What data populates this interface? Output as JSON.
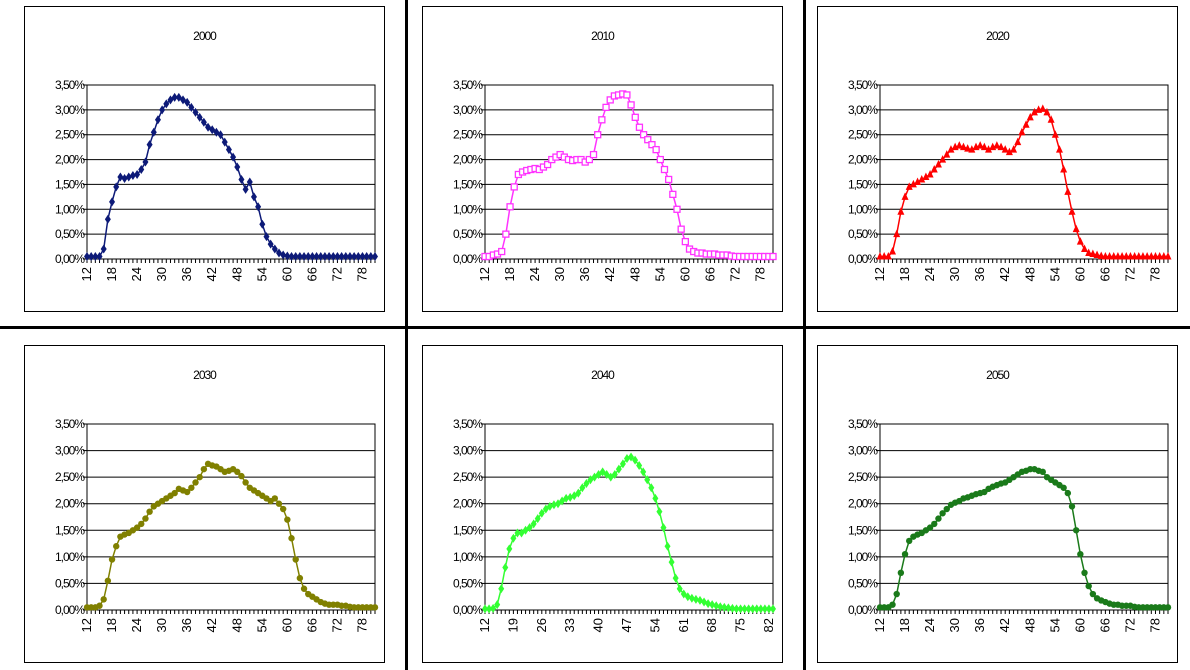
{
  "chart_data": [
    {
      "type": "line",
      "title": "2000",
      "color": "#0d1a78",
      "marker": "diamond",
      "x_ticks": [
        12,
        18,
        24,
        30,
        36,
        42,
        48,
        54,
        60,
        66,
        72,
        78
      ],
      "y_ticks": [
        "0,00%",
        "0,50%",
        "1,00%",
        "1,50%",
        "2,00%",
        "2,50%",
        "3,00%",
        "3,50%"
      ],
      "xlim": [
        12,
        81
      ],
      "ylim": [
        0,
        3.5
      ],
      "grid": true,
      "series": [
        {
          "x": [
            12,
            13,
            14,
            15,
            16,
            17,
            18,
            19,
            20,
            21,
            22,
            23,
            24,
            25,
            26,
            27,
            28,
            29,
            30,
            31,
            32,
            33,
            34,
            35,
            36,
            37,
            38,
            39,
            40,
            41,
            42,
            43,
            44,
            45,
            46,
            47,
            48,
            49,
            50,
            51,
            52,
            53,
            54,
            55,
            56,
            57,
            58,
            59,
            60,
            61,
            62,
            63,
            64,
            65,
            66,
            67,
            68,
            69,
            70,
            71,
            72,
            73,
            74,
            75,
            76,
            77,
            78,
            79,
            80,
            81
          ],
          "values": [
            0.05,
            0.05,
            0.05,
            0.05,
            0.2,
            0.8,
            1.15,
            1.45,
            1.65,
            1.62,
            1.65,
            1.68,
            1.7,
            1.8,
            1.95,
            2.3,
            2.55,
            2.8,
            3.0,
            3.12,
            3.2,
            3.25,
            3.25,
            3.2,
            3.15,
            3.05,
            2.95,
            2.85,
            2.75,
            2.65,
            2.6,
            2.55,
            2.5,
            2.35,
            2.2,
            2.05,
            1.85,
            1.6,
            1.4,
            1.55,
            1.25,
            1.05,
            0.7,
            0.45,
            0.3,
            0.2,
            0.12,
            0.08,
            0.06,
            0.05,
            0.05,
            0.05,
            0.05,
            0.05,
            0.05,
            0.05,
            0.05,
            0.05,
            0.05,
            0.05,
            0.05,
            0.05,
            0.05,
            0.05,
            0.05,
            0.05,
            0.05,
            0.05,
            0.05,
            0.05
          ]
        }
      ]
    },
    {
      "type": "line",
      "title": "2010",
      "color": "#ff33ff",
      "marker": "square",
      "x_ticks": [
        12,
        18,
        24,
        30,
        36,
        42,
        48,
        54,
        60,
        66,
        72,
        78
      ],
      "y_ticks": [
        "0,00%",
        "0,50%",
        "1,00%",
        "1,50%",
        "2,00%",
        "2,50%",
        "3,00%",
        "3,50%"
      ],
      "xlim": [
        12,
        81
      ],
      "ylim": [
        0,
        3.5
      ],
      "grid": true,
      "series": [
        {
          "x": [
            12,
            13,
            14,
            15,
            16,
            17,
            18,
            19,
            20,
            21,
            22,
            23,
            24,
            25,
            26,
            27,
            28,
            29,
            30,
            31,
            32,
            33,
            34,
            35,
            36,
            37,
            38,
            39,
            40,
            41,
            42,
            43,
            44,
            45,
            46,
            47,
            48,
            49,
            50,
            51,
            52,
            53,
            54,
            55,
            56,
            57,
            58,
            59,
            60,
            61,
            62,
            63,
            64,
            65,
            66,
            67,
            68,
            69,
            70,
            71,
            72,
            73,
            74,
            75,
            76,
            77,
            78,
            79,
            80,
            81
          ],
          "values": [
            0.05,
            0.05,
            0.08,
            0.1,
            0.15,
            0.5,
            1.05,
            1.45,
            1.7,
            1.75,
            1.78,
            1.8,
            1.82,
            1.8,
            1.85,
            1.9,
            2.0,
            2.05,
            2.1,
            2.05,
            2.0,
            1.98,
            2.0,
            2.0,
            1.95,
            2.0,
            2.1,
            2.5,
            2.8,
            3.05,
            3.2,
            3.28,
            3.3,
            3.32,
            3.3,
            3.1,
            2.85,
            2.65,
            2.5,
            2.4,
            2.3,
            2.2,
            2.0,
            1.8,
            1.6,
            1.3,
            1.0,
            0.6,
            0.35,
            0.2,
            0.15,
            0.12,
            0.12,
            0.1,
            0.1,
            0.1,
            0.08,
            0.08,
            0.08,
            0.06,
            0.05,
            0.05,
            0.05,
            0.05,
            0.05,
            0.05,
            0.05,
            0.05,
            0.05,
            0.05
          ]
        }
      ]
    },
    {
      "type": "line",
      "title": "2020",
      "color": "#ff0000",
      "marker": "triangle",
      "x_ticks": [
        12,
        18,
        24,
        30,
        36,
        42,
        48,
        54,
        60,
        66,
        72,
        78
      ],
      "y_ticks": [
        "0,00%",
        "0,50%",
        "1,00%",
        "1,50%",
        "2,00%",
        "2,50%",
        "3,00%",
        "3,50%"
      ],
      "xlim": [
        12,
        81
      ],
      "ylim": [
        0,
        3.5
      ],
      "grid": true,
      "series": [
        {
          "x": [
            12,
            13,
            14,
            15,
            16,
            17,
            18,
            19,
            20,
            21,
            22,
            23,
            24,
            25,
            26,
            27,
            28,
            29,
            30,
            31,
            32,
            33,
            34,
            35,
            36,
            37,
            38,
            39,
            40,
            41,
            42,
            43,
            44,
            45,
            46,
            47,
            48,
            49,
            50,
            51,
            52,
            53,
            54,
            55,
            56,
            57,
            58,
            59,
            60,
            61,
            62,
            63,
            64,
            65,
            66,
            67,
            68,
            69,
            70,
            71,
            72,
            73,
            74,
            75,
            76,
            77,
            78,
            79,
            80,
            81
          ],
          "values": [
            0.05,
            0.05,
            0.05,
            0.15,
            0.5,
            0.95,
            1.25,
            1.45,
            1.5,
            1.55,
            1.6,
            1.65,
            1.7,
            1.8,
            1.9,
            2.0,
            2.1,
            2.2,
            2.25,
            2.28,
            2.25,
            2.22,
            2.2,
            2.25,
            2.28,
            2.25,
            2.2,
            2.25,
            2.28,
            2.25,
            2.2,
            2.15,
            2.2,
            2.35,
            2.55,
            2.7,
            2.85,
            2.95,
            3.0,
            3.02,
            2.95,
            2.8,
            2.5,
            2.2,
            1.8,
            1.35,
            0.95,
            0.6,
            0.35,
            0.2,
            0.12,
            0.1,
            0.08,
            0.06,
            0.05,
            0.05,
            0.05,
            0.05,
            0.05,
            0.05,
            0.05,
            0.05,
            0.05,
            0.05,
            0.05,
            0.05,
            0.05,
            0.05,
            0.05,
            0.05
          ]
        }
      ]
    },
    {
      "type": "line",
      "title": "2030",
      "color": "#808000",
      "marker": "circle",
      "x_ticks": [
        12,
        18,
        24,
        30,
        36,
        42,
        48,
        54,
        60,
        66,
        72,
        78
      ],
      "y_ticks": [
        "0,00%",
        "0,50%",
        "1,00%",
        "1,50%",
        "2,00%",
        "2,50%",
        "3,00%",
        "3,50%"
      ],
      "xlim": [
        12,
        81
      ],
      "ylim": [
        0,
        3.5
      ],
      "grid": true,
      "series": [
        {
          "x": [
            12,
            13,
            14,
            15,
            16,
            17,
            18,
            19,
            20,
            21,
            22,
            23,
            24,
            25,
            26,
            27,
            28,
            29,
            30,
            31,
            32,
            33,
            34,
            35,
            36,
            37,
            38,
            39,
            40,
            41,
            42,
            43,
            44,
            45,
            46,
            47,
            48,
            49,
            50,
            51,
            52,
            53,
            54,
            55,
            56,
            57,
            58,
            59,
            60,
            61,
            62,
            63,
            64,
            65,
            66,
            67,
            68,
            69,
            70,
            71,
            72,
            73,
            74,
            75,
            76,
            77,
            78,
            79,
            80,
            81
          ],
          "values": [
            0.05,
            0.05,
            0.05,
            0.08,
            0.2,
            0.55,
            0.95,
            1.2,
            1.38,
            1.42,
            1.45,
            1.5,
            1.55,
            1.62,
            1.72,
            1.85,
            1.95,
            2.0,
            2.05,
            2.1,
            2.15,
            2.2,
            2.28,
            2.25,
            2.22,
            2.3,
            2.4,
            2.5,
            2.65,
            2.75,
            2.72,
            2.7,
            2.65,
            2.6,
            2.62,
            2.65,
            2.6,
            2.52,
            2.4,
            2.3,
            2.25,
            2.2,
            2.15,
            2.1,
            2.05,
            2.1,
            2.0,
            1.9,
            1.7,
            1.35,
            0.95,
            0.6,
            0.4,
            0.3,
            0.25,
            0.2,
            0.15,
            0.12,
            0.1,
            0.1,
            0.1,
            0.08,
            0.08,
            0.06,
            0.05,
            0.05,
            0.05,
            0.05,
            0.05,
            0.05
          ]
        }
      ]
    },
    {
      "type": "line",
      "title": "2040",
      "color": "#33ff33",
      "marker": "diamond",
      "x_ticks": [
        12,
        19,
        26,
        33,
        40,
        47,
        54,
        61,
        68,
        75,
        82
      ],
      "y_ticks": [
        "0,00%",
        "0,50%",
        "1,00%",
        "1,50%",
        "2,00%",
        "2,50%",
        "3,00%",
        "3,50%"
      ],
      "xlim": [
        12,
        83
      ],
      "ylim": [
        0,
        3.5
      ],
      "grid": true,
      "series": [
        {
          "x": [
            12,
            13,
            14,
            15,
            16,
            17,
            18,
            19,
            20,
            21,
            22,
            23,
            24,
            25,
            26,
            27,
            28,
            29,
            30,
            31,
            32,
            33,
            34,
            35,
            36,
            37,
            38,
            39,
            40,
            41,
            42,
            43,
            44,
            45,
            46,
            47,
            48,
            49,
            50,
            51,
            52,
            53,
            54,
            55,
            56,
            57,
            58,
            59,
            60,
            61,
            62,
            63,
            64,
            65,
            66,
            67,
            68,
            69,
            70,
            71,
            72,
            73,
            74,
            75,
            76,
            77,
            78,
            79,
            80,
            81,
            82,
            83
          ],
          "values": [
            0.02,
            0.02,
            0.03,
            0.1,
            0.4,
            0.8,
            1.15,
            1.35,
            1.45,
            1.45,
            1.5,
            1.55,
            1.62,
            1.72,
            1.82,
            1.9,
            1.95,
            1.98,
            2.0,
            2.05,
            2.1,
            2.12,
            2.15,
            2.2,
            2.3,
            2.38,
            2.45,
            2.5,
            2.55,
            2.6,
            2.55,
            2.5,
            2.55,
            2.65,
            2.75,
            2.85,
            2.88,
            2.82,
            2.72,
            2.6,
            2.45,
            2.3,
            2.1,
            1.85,
            1.55,
            1.2,
            0.9,
            0.6,
            0.4,
            0.3,
            0.25,
            0.22,
            0.2,
            0.18,
            0.15,
            0.12,
            0.1,
            0.08,
            0.06,
            0.05,
            0.04,
            0.03,
            0.02,
            0.02,
            0.02,
            0.02,
            0.02,
            0.02,
            0.02,
            0.02,
            0.02,
            0.02
          ]
        }
      ]
    },
    {
      "type": "line",
      "title": "2050",
      "color": "#1a7a1a",
      "marker": "circle",
      "x_ticks": [
        12,
        18,
        24,
        30,
        36,
        42,
        48,
        54,
        60,
        66,
        72,
        78
      ],
      "y_ticks": [
        "0,00%",
        "0,50%",
        "1,00%",
        "1,50%",
        "2,00%",
        "2,50%",
        "3,00%",
        "3,50%"
      ],
      "xlim": [
        12,
        81
      ],
      "ylim": [
        0,
        3.5
      ],
      "grid": true,
      "series": [
        {
          "x": [
            12,
            13,
            14,
            15,
            16,
            17,
            18,
            19,
            20,
            21,
            22,
            23,
            24,
            25,
            26,
            27,
            28,
            29,
            30,
            31,
            32,
            33,
            34,
            35,
            36,
            37,
            38,
            39,
            40,
            41,
            42,
            43,
            44,
            45,
            46,
            47,
            48,
            49,
            50,
            51,
            52,
            53,
            54,
            55,
            56,
            57,
            58,
            59,
            60,
            61,
            62,
            63,
            64,
            65,
            66,
            67,
            68,
            69,
            70,
            71,
            72,
            73,
            74,
            75,
            76,
            77,
            78,
            79,
            80,
            81
          ],
          "values": [
            0.05,
            0.05,
            0.05,
            0.1,
            0.3,
            0.7,
            1.05,
            1.3,
            1.38,
            1.42,
            1.45,
            1.5,
            1.55,
            1.62,
            1.72,
            1.82,
            1.9,
            1.98,
            2.02,
            2.05,
            2.1,
            2.12,
            2.15,
            2.18,
            2.2,
            2.22,
            2.28,
            2.32,
            2.35,
            2.38,
            2.4,
            2.45,
            2.5,
            2.55,
            2.6,
            2.62,
            2.65,
            2.65,
            2.62,
            2.6,
            2.5,
            2.45,
            2.4,
            2.35,
            2.3,
            2.2,
            1.95,
            1.5,
            1.05,
            0.7,
            0.45,
            0.3,
            0.22,
            0.18,
            0.15,
            0.12,
            0.1,
            0.1,
            0.08,
            0.08,
            0.08,
            0.06,
            0.05,
            0.05,
            0.05,
            0.05,
            0.05,
            0.05,
            0.05,
            0.05
          ]
        }
      ]
    }
  ]
}
